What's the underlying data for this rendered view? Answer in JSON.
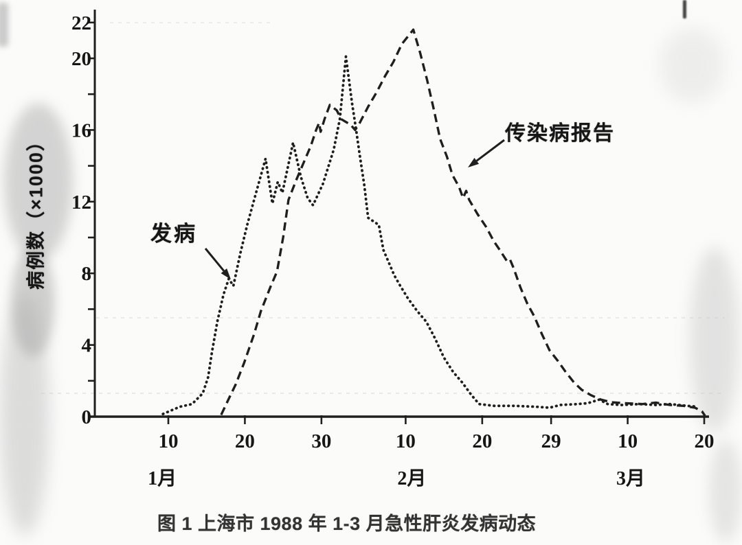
{
  "figure": {
    "caption": "图 1 上海市 1988 年 1-3 月急性肝炎发病动态"
  },
  "chart_data": {
    "type": "line",
    "title": "上海市 1988 年 1-3 月急性肝炎发病动态",
    "x_unit": "day of year 1988 (1月=1-31, 2月=32-60, 3月=61-91)",
    "y_unit": "病例数 ×1000",
    "grid": "off",
    "legend": "annotated arrows instead of legend box",
    "y_axis": {
      "title": "病例数（×1000）",
      "range": [
        0,
        22
      ],
      "minor_tick_step": 2,
      "labeled_ticks": [
        0,
        4,
        8,
        12,
        16,
        20,
        22
      ]
    },
    "x_axis": {
      "ticks": [
        {
          "date": "1月10日",
          "day": 10,
          "label": "10"
        },
        {
          "date": "1月20日",
          "day": 20,
          "label": "20"
        },
        {
          "date": "1月30日",
          "day": 30,
          "label": "30"
        },
        {
          "date": "2月10日",
          "day": 41,
          "label": "10"
        },
        {
          "date": "2月20日",
          "day": 51,
          "label": "20"
        },
        {
          "date": "2月29日",
          "day": 60,
          "label": "29"
        },
        {
          "date": "3月10日",
          "day": 70,
          "label": "10"
        },
        {
          "date": "3月20日",
          "day": 80,
          "label": "20"
        }
      ],
      "month_labels": [
        {
          "text": "1月",
          "day": 9.2
        },
        {
          "text": "2月",
          "day": 41.8
        },
        {
          "text": "3月",
          "day": 70.4
        }
      ]
    },
    "series": [
      {
        "name": "发病",
        "style": "dotted",
        "points": [
          [
            9.3,
            0.15
          ],
          [
            11.5,
            0.55
          ],
          [
            13.1,
            0.7
          ],
          [
            14.5,
            1.3
          ],
          [
            15.2,
            2.2
          ],
          [
            15.7,
            3.6
          ],
          [
            16.4,
            5.3
          ],
          [
            17.2,
            6.8
          ],
          [
            17.9,
            7.7
          ],
          [
            18.5,
            7.3
          ],
          [
            19.4,
            9.1
          ],
          [
            20.3,
            10.7
          ],
          [
            21.4,
            12.4
          ],
          [
            22.7,
            14.4
          ],
          [
            23.6,
            11.9
          ],
          [
            24.3,
            13.1
          ],
          [
            24.9,
            12.5
          ],
          [
            26.3,
            15.3
          ],
          [
            27.3,
            13.4
          ],
          [
            28.2,
            12.2
          ],
          [
            28.9,
            11.8
          ],
          [
            30.2,
            13.0
          ],
          [
            31.6,
            14.9
          ],
          [
            32.4,
            16.6
          ],
          [
            33.2,
            20.1
          ],
          [
            34.0,
            17.5
          ],
          [
            34.5,
            16.1
          ],
          [
            35.0,
            14.6
          ],
          [
            35.6,
            12.9
          ],
          [
            36.1,
            11.1
          ],
          [
            37.5,
            10.7
          ],
          [
            38.1,
            9.3
          ],
          [
            38.8,
            8.6
          ],
          [
            39.5,
            7.9
          ],
          [
            40.3,
            7.3
          ],
          [
            41.3,
            6.6
          ],
          [
            42.5,
            5.9
          ],
          [
            43.7,
            5.3
          ],
          [
            44.8,
            4.4
          ],
          [
            46.0,
            3.3
          ],
          [
            47.2,
            2.5
          ],
          [
            48.4,
            1.9
          ],
          [
            49.6,
            1.2
          ],
          [
            50.6,
            0.7
          ],
          [
            52.6,
            0.6
          ],
          [
            55.3,
            0.6
          ],
          [
            58.0,
            0.55
          ],
          [
            59.8,
            0.5
          ],
          [
            61.2,
            0.65
          ],
          [
            63.4,
            0.7
          ],
          [
            64.8,
            0.75
          ],
          [
            66.3,
            0.95
          ],
          [
            67.4,
            0.7
          ],
          [
            69.2,
            0.65
          ],
          [
            71.5,
            0.7
          ],
          [
            73.7,
            0.65
          ],
          [
            75.5,
            0.7
          ],
          [
            77.8,
            0.6
          ],
          [
            79.2,
            0.55
          ]
        ]
      },
      {
        "name": "传染病报告",
        "style": "dashed",
        "points": [
          [
            16.9,
            0.1
          ],
          [
            17.9,
            1.0
          ],
          [
            18.8,
            1.8
          ],
          [
            19.9,
            3.0
          ],
          [
            21.2,
            4.6
          ],
          [
            22.1,
            5.9
          ],
          [
            23.3,
            7.2
          ],
          [
            24.2,
            8.1
          ],
          [
            25.0,
            10.0
          ],
          [
            25.7,
            12.1
          ],
          [
            26.7,
            13.2
          ],
          [
            27.6,
            14.1
          ],
          [
            28.6,
            15.1
          ],
          [
            29.3,
            16.0
          ],
          [
            29.7,
            16.4
          ],
          [
            29.9,
            15.9
          ],
          [
            30.4,
            16.6
          ],
          [
            31.1,
            17.4
          ],
          [
            32.0,
            17.1
          ],
          [
            32.6,
            16.6
          ],
          [
            33.8,
            16.3
          ],
          [
            34.4,
            16.0
          ],
          [
            35.0,
            16.4
          ],
          [
            36.1,
            17.3
          ],
          [
            37.2,
            18.1
          ],
          [
            38.3,
            19.0
          ],
          [
            39.4,
            19.8
          ],
          [
            40.5,
            20.8
          ],
          [
            42.0,
            21.6
          ],
          [
            42.9,
            20.3
          ],
          [
            43.8,
            18.8
          ],
          [
            44.7,
            17.1
          ],
          [
            45.5,
            15.5
          ],
          [
            46.4,
            14.5
          ],
          [
            47.1,
            13.5
          ],
          [
            48.0,
            12.8
          ],
          [
            48.5,
            12.2
          ],
          [
            48.9,
            12.6
          ],
          [
            49.3,
            12.1
          ],
          [
            50.4,
            11.3
          ],
          [
            51.5,
            10.6
          ],
          [
            52.5,
            9.8
          ],
          [
            53.3,
            9.3
          ],
          [
            54.2,
            8.7
          ],
          [
            54.6,
            8.8
          ],
          [
            55.1,
            8.3
          ],
          [
            56.0,
            7.2
          ],
          [
            56.9,
            6.3
          ],
          [
            57.8,
            5.6
          ],
          [
            58.8,
            4.6
          ],
          [
            59.8,
            3.7
          ],
          [
            60.9,
            3.1
          ],
          [
            61.9,
            2.5
          ],
          [
            63.0,
            1.9
          ],
          [
            64.0,
            1.5
          ],
          [
            65.2,
            1.2
          ],
          [
            66.5,
            0.95
          ],
          [
            67.9,
            0.8
          ],
          [
            69.7,
            0.75
          ],
          [
            71.9,
            0.7
          ],
          [
            73.7,
            0.78
          ],
          [
            75.5,
            0.65
          ],
          [
            77.3,
            0.6
          ],
          [
            78.8,
            0.5
          ],
          [
            79.7,
            0.3
          ],
          [
            80.1,
            0.05
          ]
        ]
      }
    ],
    "annotations": [
      {
        "text": "发病",
        "series": "发病",
        "arrow": "points down-right to rising dotted curve"
      },
      {
        "text": "传染病报告",
        "series": "传染病报告",
        "arrow": "points down-left to falling dashed curve"
      }
    ]
  },
  "colors": {
    "ink": "#1f1f1f",
    "paper": "#fbfbfa",
    "caption_text": "#333333",
    "scan_smudge": "#a8a8a8"
  }
}
